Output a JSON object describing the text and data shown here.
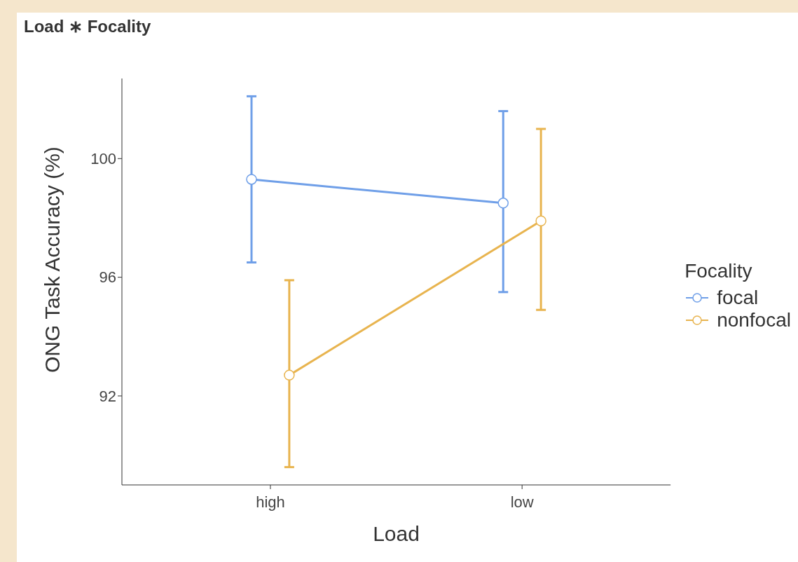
{
  "chart_data": {
    "type": "line",
    "title": "Load ∗ Focality",
    "xlabel": "Load",
    "ylabel": "ONG Task Accuracy (%)",
    "legend_title": "Focality",
    "categories": [
      "high",
      "low"
    ],
    "series": [
      {
        "name": "focal",
        "color": "#6f9fe8",
        "values": [
          99.3,
          98.5
        ],
        "errors": [
          [
            96.5,
            102.1
          ],
          [
            95.5,
            101.6
          ]
        ]
      },
      {
        "name": "nonfocal",
        "color": "#e8b44f",
        "values": [
          92.7,
          97.9
        ],
        "errors": [
          [
            89.6,
            95.9
          ],
          [
            94.9,
            101.0
          ]
        ]
      }
    ],
    "ylim": [
      89,
      102.7
    ],
    "yticks": [
      92,
      96,
      100
    ],
    "legend": "right",
    "marker": "circle",
    "line_style": "solid"
  }
}
